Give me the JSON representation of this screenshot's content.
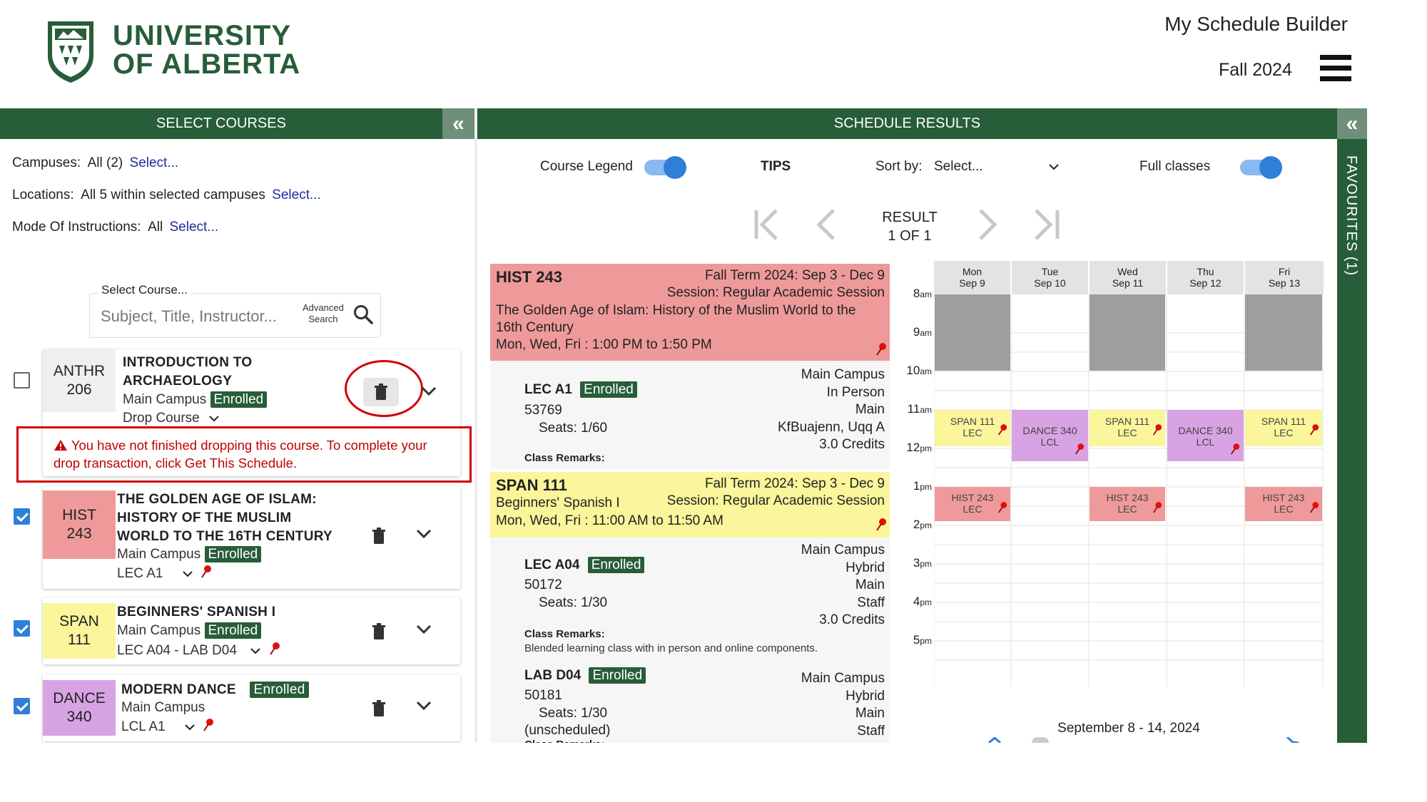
{
  "header": {
    "logo_line1": "UNIVERSITY",
    "logo_line2": "OF ALBERTA",
    "app_title": "My Schedule Builder",
    "term": "Fall 2024"
  },
  "left_panel": {
    "title": "SELECT COURSES",
    "filters": [
      {
        "label": "Campuses:",
        "value": "All (2)",
        "link": "Select..."
      },
      {
        "label": "Locations:",
        "value": "All 5 within selected campuses",
        "link": "Select..."
      },
      {
        "label": "Mode Of Instructions:",
        "value": "All",
        "link": "Select..."
      }
    ],
    "search": {
      "label": "Select Course...",
      "placeholder": "Subject, Title, Instructor...",
      "advanced_line1": "Advanced",
      "advanced_line2": "Search"
    },
    "courses": [
      {
        "subject": "ANTHR",
        "number": "206",
        "title_line1": "INTRODUCTION TO",
        "title_line2": "ARCHAEOLOGY",
        "campus": "Main Campus",
        "status": "Enrolled",
        "section": "Drop Course",
        "checked": false,
        "color": "#efefef"
      },
      {
        "subject": "HIST",
        "number": "243",
        "title_line1": "THE GOLDEN AGE OF ISLAM:",
        "title_line2": "HISTORY OF THE MUSLIM",
        "title_line3": "WORLD TO THE 16TH CENTURY",
        "campus": "Main Campus",
        "status": "Enrolled",
        "section": "LEC A1",
        "checked": true,
        "color": "#ee9a9a"
      },
      {
        "subject": "SPAN",
        "number": "111",
        "title_line1": "BEGINNERS' SPANISH I",
        "campus": "Main Campus",
        "status": "Enrolled",
        "section": "LEC A04 - LAB D04",
        "checked": true,
        "color": "#fbf59b"
      },
      {
        "subject": "DANCE",
        "number": "340",
        "title_line1": "MODERN DANCE",
        "campus": "Main Campus",
        "status": "Enrolled",
        "section": "LCL A1",
        "checked": true,
        "color": "#d8a3e3"
      }
    ],
    "warning": "You have not finished dropping this course. To complete your drop transaction, click Get This Schedule."
  },
  "results_panel": {
    "title": "SCHEDULE RESULTS",
    "course_legend_label": "Course Legend",
    "tips_label": "TIPS",
    "sort_label": "Sort by:",
    "sort_value": "Select...",
    "full_classes_label": "Full classes",
    "result_line1": "RESULT",
    "result_line2": "1 OF 1",
    "results": [
      {
        "code": "HIST 243",
        "term": "Fall Term 2024: Sep 3 - Dec 9",
        "session": "Session: Regular Academic Session",
        "title_line1": "The Golden Age of Islam: History of the Muslim World to the",
        "title_line2": "16th Century",
        "times": "Mon, Wed, Fri : 1:00 PM to 1:50 PM",
        "sections": [
          {
            "name": "LEC A1",
            "status": "Enrolled",
            "class_no": "53769",
            "seats": "Seats: 1/60",
            "campus": "Main Campus",
            "mode": "In Person",
            "location": "Main",
            "instructor": "KfBuajenn, Uqq A",
            "credits": "3.0 Credits",
            "remarks_label": "Class Remarks:",
            "remarks": ""
          }
        ]
      },
      {
        "code": "SPAN 111",
        "term": "Fall Term 2024: Sep 3 - Dec 9",
        "session": "Session: Regular Academic Session",
        "title_line1": "Beginners' Spanish I",
        "times": "Mon, Wed, Fri : 11:00 AM to 11:50 AM",
        "sections": [
          {
            "name": "LEC A04",
            "status": "Enrolled",
            "class_no": "50172",
            "seats": "Seats: 1/30",
            "campus": "Main Campus",
            "mode": "Hybrid",
            "location": "Main",
            "instructor": "Staff",
            "credits": "3.0 Credits",
            "remarks_label": "Class Remarks:",
            "remarks": "Blended learning class with in person and online components."
          },
          {
            "name": "LAB D04",
            "status": "Enrolled",
            "class_no": "50181",
            "seats": "Seats: 1/30",
            "note": "(unscheduled)",
            "campus": "Main Campus",
            "mode": "Hybrid",
            "location": "Main",
            "instructor": "Staff",
            "remarks_label": "Class Remarks:"
          }
        ]
      }
    ]
  },
  "calendar": {
    "days": [
      {
        "day": "Mon",
        "date": "Sep 9"
      },
      {
        "day": "Tue",
        "date": "Sep 10"
      },
      {
        "day": "Wed",
        "date": "Sep 11"
      },
      {
        "day": "Thu",
        "date": "Sep 12"
      },
      {
        "day": "Fri",
        "date": "Sep 13"
      }
    ],
    "times": [
      {
        "h": "8",
        "s": "am"
      },
      {
        "h": "9",
        "s": "am"
      },
      {
        "h": "10",
        "s": "am"
      },
      {
        "h": "11",
        "s": "am"
      },
      {
        "h": "12",
        "s": "pm"
      },
      {
        "h": "1",
        "s": "pm"
      },
      {
        "h": "2",
        "s": "pm"
      },
      {
        "h": "3",
        "s": "pm"
      },
      {
        "h": "4",
        "s": "pm"
      },
      {
        "h": "5",
        "s": "pm"
      }
    ],
    "blocks": {
      "span_l1": "SPAN 111",
      "span_l2": "LEC",
      "dance_l1": "DANCE 340",
      "dance_l2": "LCL",
      "hist_l1": "HIST 243",
      "hist_l2": "LEC"
    },
    "week_label": "September 8 - 14, 2024"
  },
  "favourites": {
    "label": "FAVOURITES (1)"
  }
}
